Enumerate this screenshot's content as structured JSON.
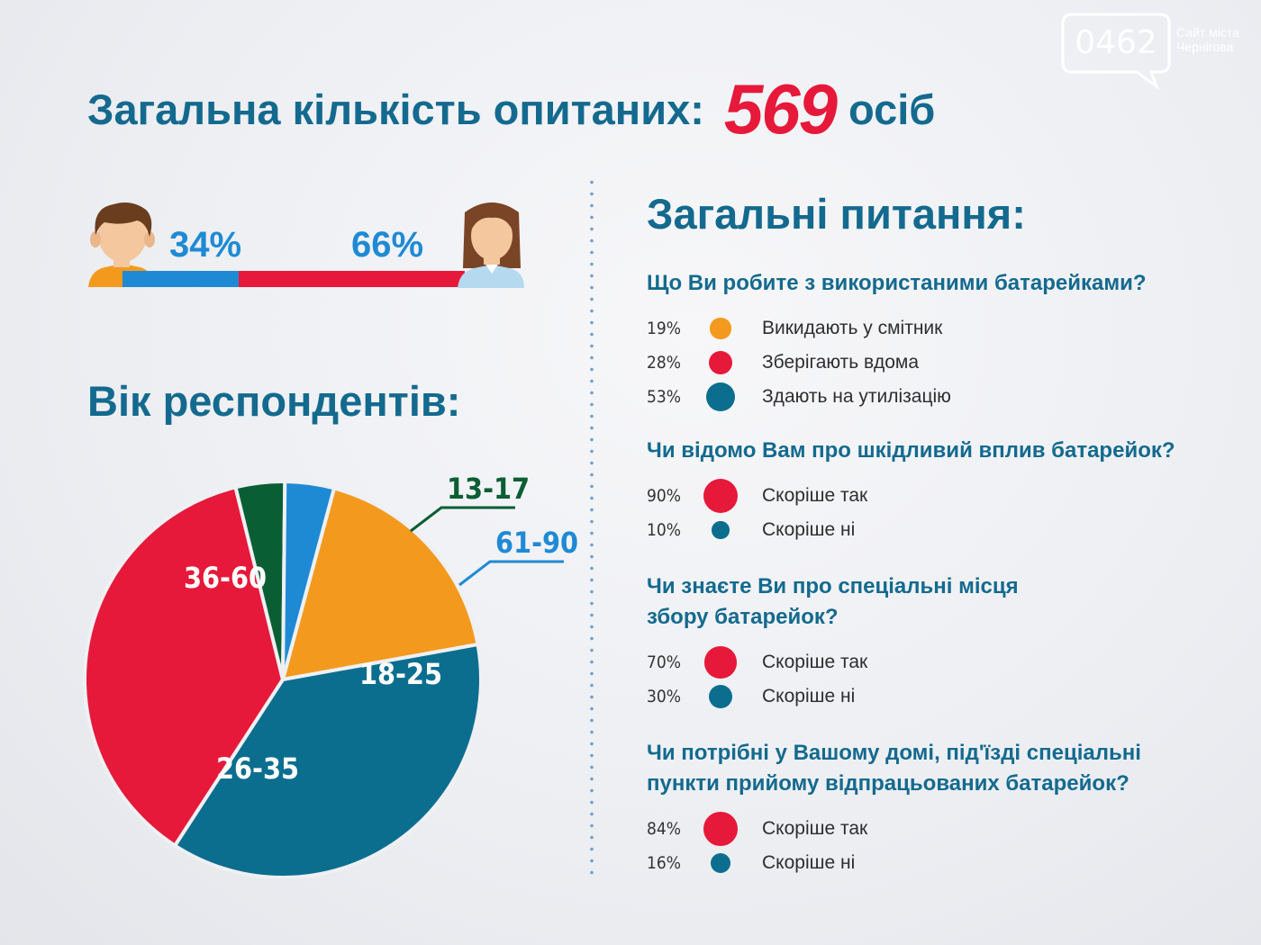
{
  "logo": {
    "number": "0462",
    "site_line1": "Сайт міста",
    "site_line2": "Чернігова"
  },
  "headline": {
    "text": "Загальна кількість опитаних:",
    "count": "569",
    "unit": "осіб"
  },
  "gender": {
    "male_pct": "34%",
    "female_pct": "66%",
    "male_value": 34,
    "female_value": 66,
    "male_color": "#1f8ad4",
    "female_color": "#e6193a"
  },
  "age_title": "Вік респондентів:",
  "questions_title": "Загальні питання:",
  "questions": [
    {
      "lines": [
        "Що Ви робите з використаними батарейками?"
      ],
      "answers": [
        {
          "pct": "19%",
          "value": 19,
          "label": "Викидають у смітник",
          "color": "#f39a1e"
        },
        {
          "pct": "28%",
          "value": 28,
          "label": "Зберігають вдома",
          "color": "#e6193a"
        },
        {
          "pct": "53%",
          "value": 53,
          "label": "Здають на утилізацію",
          "color": "#0b6e8f"
        }
      ]
    },
    {
      "lines": [
        "Чи відомо Вам про шкідливий вплив батарейок?"
      ],
      "answers": [
        {
          "pct": "90%",
          "value": 90,
          "label": "Скоріше так",
          "color": "#e6193a"
        },
        {
          "pct": "10%",
          "value": 10,
          "label": "Скоріше ні",
          "color": "#0b6e8f"
        }
      ]
    },
    {
      "lines": [
        "Чи знаєте Ви про спеціальні місця",
        "збору батарейок?"
      ],
      "answers": [
        {
          "pct": "70%",
          "value": 70,
          "label": "Скоріше так",
          "color": "#e6193a"
        },
        {
          "pct": "30%",
          "value": 30,
          "label": "Скоріше ні",
          "color": "#0b6e8f"
        }
      ]
    },
    {
      "lines": [
        "Чи потрібні у Вашому домі, під'їзді спеціальні",
        "пункти прийому відпрацьованих батарейок?"
      ],
      "answers": [
        {
          "pct": "84%",
          "value": 84,
          "label": "Скоріше так",
          "color": "#e6193a"
        },
        {
          "pct": "16%",
          "value": 16,
          "label": "Скоріше ні",
          "color": "#0b6e8f"
        }
      ]
    }
  ],
  "chart_data": {
    "type": "pie",
    "title": "Вік респондентів:",
    "slices": [
      {
        "label": "18-25",
        "value": 18,
        "color": "#f39a1e"
      },
      {
        "label": "26-35",
        "value": 37,
        "color": "#0b6e8f"
      },
      {
        "label": "36-60",
        "value": 37,
        "color": "#e6193a"
      },
      {
        "label": "13-17",
        "value": 4,
        "color": "#0a5e34"
      },
      {
        "label": "61-90",
        "value": 4,
        "color": "#1f8ad4"
      }
    ]
  }
}
